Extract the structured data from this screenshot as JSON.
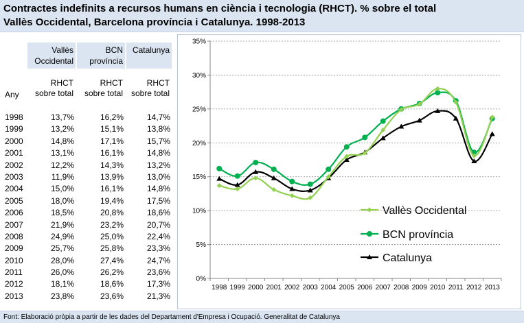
{
  "title": {
    "line1": "Contractes indefinits a recursos humans en ciència i tecnologia (RHCT). % sobre el total",
    "line2": "Vallès Occidental, Barcelona província i Catalunya. 1998-2013"
  },
  "table": {
    "columns": [
      {
        "line1": "Vallès",
        "line2": "Occidental"
      },
      {
        "line1": "BCN",
        "line2": "província"
      },
      {
        "line1": "Catalunya",
        "line2": ""
      }
    ],
    "subheader": {
      "line1": "RHCT",
      "line2": "sobre total"
    },
    "year_header": "Any",
    "rows": [
      {
        "year": "1998",
        "v1": "13,7%",
        "v2": "16,2%",
        "v3": "14,7%"
      },
      {
        "year": "1999",
        "v1": "13,2%",
        "v2": "15,1%",
        "v3": "13,8%"
      },
      {
        "year": "2000",
        "v1": "14,8%",
        "v2": "17,1%",
        "v3": "15,7%"
      },
      {
        "year": "2001",
        "v1": "13,1%",
        "v2": "16,1%",
        "v3": "14,8%"
      },
      {
        "year": "2002",
        "v1": "12,2%",
        "v2": "14,3%",
        "v3": "13,2%"
      },
      {
        "year": "2003",
        "v1": "11,9%",
        "v2": "13,9%",
        "v3": "13,0%"
      },
      {
        "year": "2004",
        "v1": "15,0%",
        "v2": "16,1%",
        "v3": "14,8%"
      },
      {
        "year": "2005",
        "v1": "18,0%",
        "v2": "19,4%",
        "v3": "17,5%"
      },
      {
        "year": "2006",
        "v1": "18,5%",
        "v2": "20,8%",
        "v3": "18,6%"
      },
      {
        "year": "2007",
        "v1": "21,9%",
        "v2": "23,2%",
        "v3": "20,7%"
      },
      {
        "year": "2008",
        "v1": "24,9%",
        "v2": "25,0%",
        "v3": "22,4%"
      },
      {
        "year": "2009",
        "v1": "25,7%",
        "v2": "25,8%",
        "v3": "23,3%"
      },
      {
        "year": "2010",
        "v1": "28,0%",
        "v2": "27,4%",
        "v3": "24,7%"
      },
      {
        "year": "2011",
        "v1": "26,0%",
        "v2": "26,2%",
        "v3": "23,6%"
      },
      {
        "year": "2012",
        "v1": "18,1%",
        "v2": "18,6%",
        "v3": "17,3%"
      },
      {
        "year": "2013",
        "v1": "23,8%",
        "v2": "23,6%",
        "v3": "21,3%"
      }
    ]
  },
  "footer": "Font: Elaboració pròpia a partir de les dades del Departament d'Empresa i Ocupació. Generalitat de Catalunya",
  "chart_data": {
    "type": "line",
    "categories": [
      "1998",
      "1999",
      "2000",
      "2001",
      "2002",
      "2003",
      "2004",
      "2005",
      "2006",
      "2007",
      "2008",
      "2009",
      "2010",
      "2011",
      "2012",
      "2013"
    ],
    "ylim": [
      0,
      35
    ],
    "yticks": [
      0,
      5,
      10,
      15,
      20,
      25,
      30,
      35
    ],
    "ytick_labels": [
      "0%",
      "5%",
      "10%",
      "15%",
      "20%",
      "25%",
      "30%",
      "35%"
    ],
    "grid": "horizontal",
    "legend_position": "bottom-right",
    "series": [
      {
        "name": "Vallès Occidental",
        "color": "#92d050",
        "marker": "diamond",
        "values": [
          13.7,
          13.2,
          14.8,
          13.1,
          12.2,
          11.9,
          15.0,
          18.0,
          18.5,
          21.9,
          24.9,
          25.7,
          28.0,
          26.0,
          18.1,
          23.8
        ]
      },
      {
        "name": "BCN província",
        "color": "#00b050",
        "marker": "circle",
        "values": [
          16.2,
          15.1,
          17.1,
          16.1,
          14.3,
          13.9,
          16.1,
          19.4,
          20.8,
          23.2,
          25.0,
          25.8,
          27.4,
          26.2,
          18.6,
          23.6
        ]
      },
      {
        "name": "Catalunya",
        "color": "#000000",
        "marker": "triangle",
        "values": [
          14.7,
          13.8,
          15.7,
          14.8,
          13.2,
          13.0,
          14.8,
          17.5,
          18.6,
          20.7,
          22.4,
          23.3,
          24.7,
          23.6,
          17.3,
          21.3
        ]
      }
    ]
  }
}
